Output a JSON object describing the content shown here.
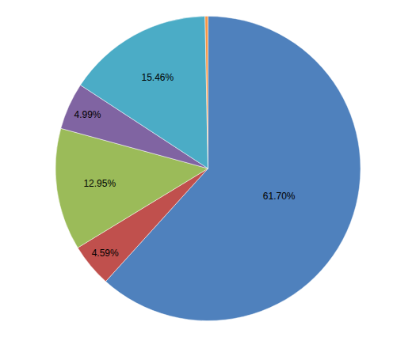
{
  "chart_data": {
    "type": "pie",
    "values": [
      61.7,
      4.59,
      12.95,
      4.99,
      15.46,
      0.31
    ],
    "value_labels": [
      "61.70%",
      "4.59%",
      "12.95%",
      "4.99%",
      "15.46%",
      null
    ],
    "colors": [
      "#4f81bd",
      "#c0504d",
      "#9bbb59",
      "#8064a2",
      "#4bacc6",
      "#f79646"
    ],
    "data_labels": true
  }
}
